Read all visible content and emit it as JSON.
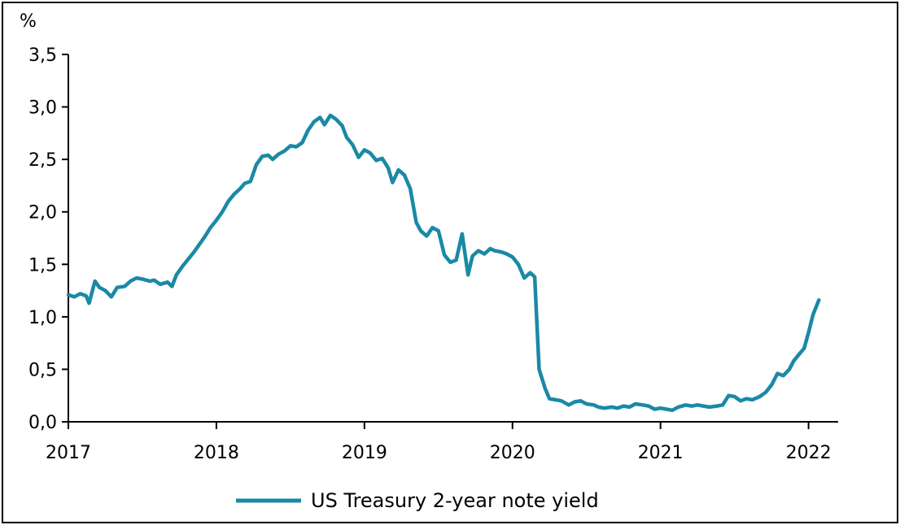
{
  "chart_data": {
    "type": "line",
    "title": "",
    "ylabel": "%",
    "xlabel": "",
    "xlim": [
      2017.0,
      2022.2
    ],
    "ylim": [
      0,
      3.5
    ],
    "x_ticks": [
      2017,
      2018,
      2019,
      2020,
      2021,
      2022
    ],
    "x_tick_labels": [
      "2017",
      "2018",
      "2019",
      "2020",
      "2021",
      "2022"
    ],
    "y_ticks": [
      0,
      0.5,
      1.0,
      1.5,
      2.0,
      2.5,
      3.0,
      3.5
    ],
    "y_tick_labels": [
      "0,0",
      "0,5",
      "1,0",
      "1,5",
      "2,0",
      "2,5",
      "3,0",
      "3,5"
    ],
    "grid": false,
    "legend_position": "bottom-center",
    "series": [
      {
        "name": "US Treasury 2-year note yield",
        "color": "#1a89a6",
        "points": [
          [
            2017.0,
            1.21
          ],
          [
            2017.04,
            1.19
          ],
          [
            2017.08,
            1.22
          ],
          [
            2017.12,
            1.2
          ],
          [
            2017.14,
            1.13
          ],
          [
            2017.18,
            1.34
          ],
          [
            2017.21,
            1.28
          ],
          [
            2017.25,
            1.25
          ],
          [
            2017.29,
            1.19
          ],
          [
            2017.33,
            1.28
          ],
          [
            2017.38,
            1.29
          ],
          [
            2017.42,
            1.34
          ],
          [
            2017.46,
            1.37
          ],
          [
            2017.5,
            1.36
          ],
          [
            2017.55,
            1.34
          ],
          [
            2017.58,
            1.35
          ],
          [
            2017.62,
            1.31
          ],
          [
            2017.67,
            1.33
          ],
          [
            2017.7,
            1.29
          ],
          [
            2017.73,
            1.4
          ],
          [
            2017.77,
            1.48
          ],
          [
            2017.81,
            1.55
          ],
          [
            2017.85,
            1.62
          ],
          [
            2017.88,
            1.68
          ],
          [
            2017.92,
            1.76
          ],
          [
            2017.96,
            1.85
          ],
          [
            2018.0,
            1.92
          ],
          [
            2018.04,
            2.0
          ],
          [
            2018.08,
            2.1
          ],
          [
            2018.12,
            2.17
          ],
          [
            2018.16,
            2.22
          ],
          [
            2018.19,
            2.27
          ],
          [
            2018.23,
            2.29
          ],
          [
            2018.27,
            2.45
          ],
          [
            2018.31,
            2.53
          ],
          [
            2018.35,
            2.54
          ],
          [
            2018.38,
            2.5
          ],
          [
            2018.42,
            2.55
          ],
          [
            2018.46,
            2.58
          ],
          [
            2018.5,
            2.63
          ],
          [
            2018.54,
            2.62
          ],
          [
            2018.58,
            2.66
          ],
          [
            2018.62,
            2.78
          ],
          [
            2018.66,
            2.86
          ],
          [
            2018.7,
            2.9
          ],
          [
            2018.73,
            2.83
          ],
          [
            2018.77,
            2.92
          ],
          [
            2018.81,
            2.88
          ],
          [
            2018.85,
            2.82
          ],
          [
            2018.88,
            2.71
          ],
          [
            2018.92,
            2.64
          ],
          [
            2018.96,
            2.52
          ],
          [
            2019.0,
            2.59
          ],
          [
            2019.04,
            2.56
          ],
          [
            2019.08,
            2.49
          ],
          [
            2019.12,
            2.51
          ],
          [
            2019.16,
            2.42
          ],
          [
            2019.19,
            2.28
          ],
          [
            2019.23,
            2.4
          ],
          [
            2019.27,
            2.35
          ],
          [
            2019.31,
            2.22
          ],
          [
            2019.35,
            1.9
          ],
          [
            2019.38,
            1.82
          ],
          [
            2019.42,
            1.77
          ],
          [
            2019.46,
            1.85
          ],
          [
            2019.5,
            1.82
          ],
          [
            2019.54,
            1.59
          ],
          [
            2019.58,
            1.52
          ],
          [
            2019.62,
            1.54
          ],
          [
            2019.66,
            1.79
          ],
          [
            2019.7,
            1.4
          ],
          [
            2019.73,
            1.58
          ],
          [
            2019.77,
            1.63
          ],
          [
            2019.81,
            1.6
          ],
          [
            2019.85,
            1.65
          ],
          [
            2019.88,
            1.63
          ],
          [
            2019.92,
            1.62
          ],
          [
            2019.96,
            1.6
          ],
          [
            2020.0,
            1.57
          ],
          [
            2020.04,
            1.5
          ],
          [
            2020.08,
            1.37
          ],
          [
            2020.12,
            1.42
          ],
          [
            2020.15,
            1.38
          ],
          [
            2020.18,
            0.5
          ],
          [
            2020.22,
            0.32
          ],
          [
            2020.25,
            0.22
          ],
          [
            2020.29,
            0.21
          ],
          [
            2020.33,
            0.2
          ],
          [
            2020.38,
            0.16
          ],
          [
            2020.42,
            0.19
          ],
          [
            2020.46,
            0.2
          ],
          [
            2020.5,
            0.17
          ],
          [
            2020.55,
            0.16
          ],
          [
            2020.58,
            0.14
          ],
          [
            2020.62,
            0.13
          ],
          [
            2020.67,
            0.14
          ],
          [
            2020.71,
            0.13
          ],
          [
            2020.75,
            0.15
          ],
          [
            2020.79,
            0.14
          ],
          [
            2020.83,
            0.17
          ],
          [
            2020.88,
            0.16
          ],
          [
            2020.92,
            0.15
          ],
          [
            2020.96,
            0.12
          ],
          [
            2021.0,
            0.13
          ],
          [
            2021.04,
            0.12
          ],
          [
            2021.08,
            0.11
          ],
          [
            2021.12,
            0.14
          ],
          [
            2021.17,
            0.16
          ],
          [
            2021.21,
            0.15
          ],
          [
            2021.25,
            0.16
          ],
          [
            2021.29,
            0.15
          ],
          [
            2021.33,
            0.14
          ],
          [
            2021.38,
            0.15
          ],
          [
            2021.42,
            0.16
          ],
          [
            2021.46,
            0.25
          ],
          [
            2021.5,
            0.24
          ],
          [
            2021.54,
            0.2
          ],
          [
            2021.58,
            0.22
          ],
          [
            2021.62,
            0.21
          ],
          [
            2021.67,
            0.24
          ],
          [
            2021.71,
            0.28
          ],
          [
            2021.75,
            0.35
          ],
          [
            2021.79,
            0.46
          ],
          [
            2021.83,
            0.44
          ],
          [
            2021.87,
            0.5
          ],
          [
            2021.9,
            0.58
          ],
          [
            2021.94,
            0.65
          ],
          [
            2021.97,
            0.7
          ],
          [
            2022.0,
            0.85
          ],
          [
            2022.03,
            1.02
          ],
          [
            2022.07,
            1.16
          ]
        ]
      }
    ]
  }
}
